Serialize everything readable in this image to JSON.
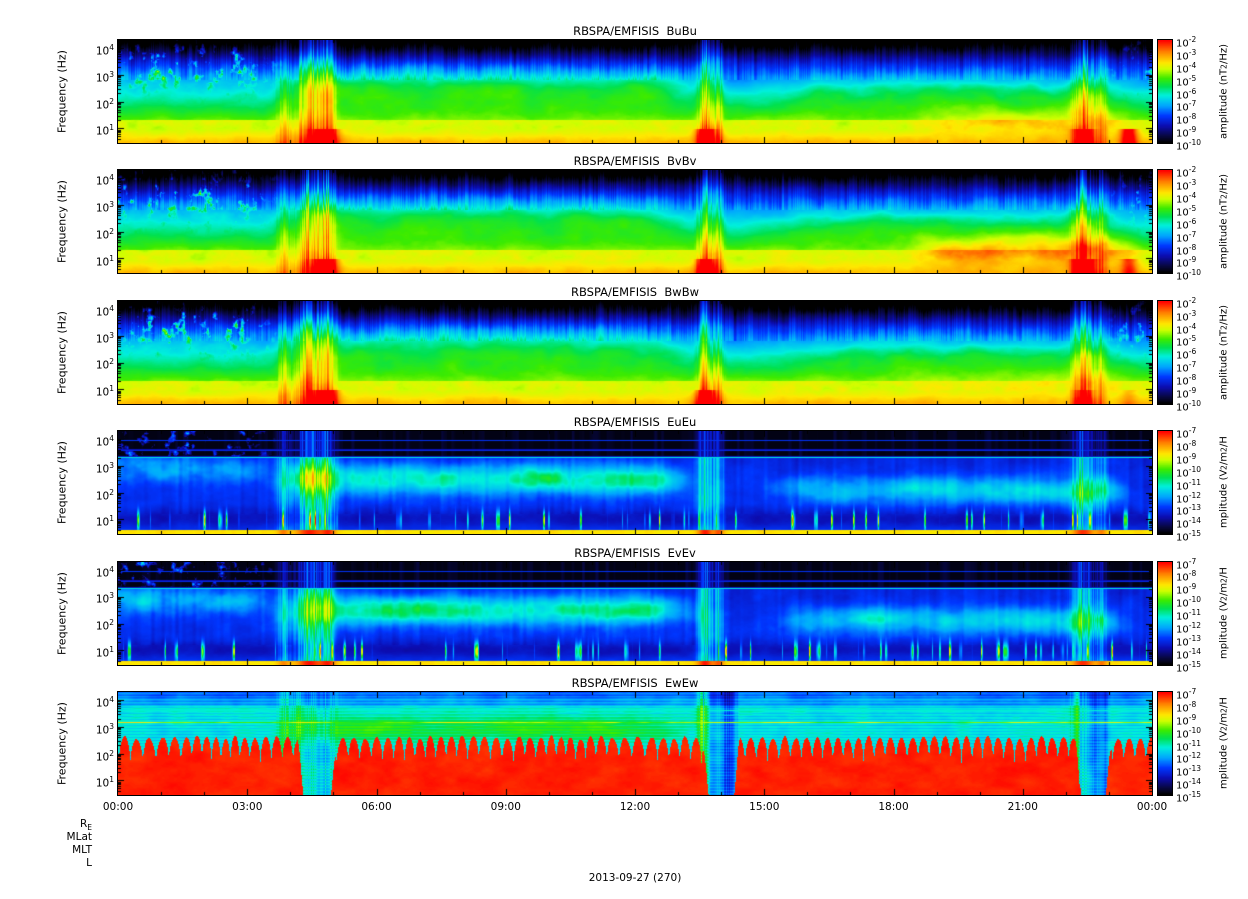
{
  "figure": {
    "background": "#ffffff",
    "date_label": "2013-09-27 (270)",
    "ephemeris_row_labels": [
      "R_E",
      "MLat",
      "MLT",
      "L"
    ],
    "time_axis": {
      "tick_labels": [
        "00:00",
        "03:00",
        "06:00",
        "09:00",
        "12:00",
        "15:00",
        "18:00",
        "21:00",
        "00:00"
      ]
    }
  },
  "chart_data": [
    {
      "type": "heatmap",
      "title": "RBSPA/EMFISIS  BuBu",
      "component": "BuBu",
      "ylabel": "Frequency (Hz)",
      "yscale": "log",
      "y_tick_exponents": [
        4,
        3,
        2,
        1
      ],
      "ylim_hz": [
        3,
        20000
      ],
      "colorbar": {
        "label": "amplitude (nT^2/Hz)",
        "scale": "log",
        "tick_exponents": [
          -2,
          -3,
          -4,
          -5,
          -6,
          -7,
          -8,
          -9,
          -10
        ]
      },
      "features": "magnetic spectral density: intense yellow-orange band below ~30 Hz all day with red bursts near 05:00, 13:40, 22:30 and 23:30; green hiss band 100-1000 Hz enhanced 05:00-13:30 and patchy afterwards; broadband impulsive streaks 04:10-05:00, 13:30-14:00, 22:20; dark background above ~3 kHz with faint blue striations"
    },
    {
      "type": "heatmap",
      "title": "RBSPA/EMFISIS  BvBv",
      "component": "BvBv",
      "ylabel": "Frequency (Hz)",
      "yscale": "log",
      "y_tick_exponents": [
        4,
        3,
        2,
        1
      ],
      "ylim_hz": [
        3,
        20000
      ],
      "colorbar": {
        "label": "amplitude (nT^2/Hz)",
        "scale": "log",
        "tick_exponents": [
          -2,
          -3,
          -4,
          -5,
          -6,
          -7,
          -8,
          -9,
          -10
        ]
      },
      "features": "similar to BuBu with stronger orange patches 10-60 Hz between 19:00 and 23:00 and red low-frequency bursts near 05:00, 13:40 and 22:45"
    },
    {
      "type": "heatmap",
      "title": "RBSPA/EMFISIS  BwBw",
      "component": "BwBw",
      "ylabel": "Frequency (Hz)",
      "yscale": "log",
      "y_tick_exponents": [
        4,
        3,
        2,
        1
      ],
      "ylim_hz": [
        3,
        20000
      ],
      "colorbar": {
        "label": "amplitude (nT^2/Hz)",
        "scale": "log",
        "tick_exponents": [
          -2,
          -3,
          -4,
          -5,
          -6,
          -7,
          -8,
          -9,
          -10
        ]
      },
      "features": "similar to BuBu with smoother uniform yellow low-frequency band and weaker red bursts"
    },
    {
      "type": "heatmap",
      "title": "RBSPA/EMFISIS  EuEu",
      "component": "EuEu",
      "ylabel": "Frequency (Hz)",
      "yscale": "log",
      "y_tick_exponents": [
        4,
        3,
        2,
        1
      ],
      "ylim_hz": [
        3,
        20000
      ],
      "colorbar": {
        "label": "mplitude (V^2/m^2/H",
        "scale": "log",
        "tick_exponents": [
          -7,
          -8,
          -9,
          -10,
          -11,
          -12,
          -13,
          -14,
          -15
        ]
      },
      "features": "electric spectral density: thin yellow line at lowest frequencies; dark blue background with cyan-green band 100-1000 Hz enhanced 05:00-13:30 and patchy 15:00-23:00; black band above ~2 kHz crossed by narrow cyan horizontal lines; broadband streaks at 04:30, 13:40, 22:30; green vertical spikes below ~30 Hz"
    },
    {
      "type": "heatmap",
      "title": "RBSPA/EMFISIS  EvEv",
      "component": "EvEv",
      "ylabel": "Frequency (Hz)",
      "yscale": "log",
      "y_tick_exponents": [
        4,
        3,
        2,
        1
      ],
      "ylim_hz": [
        3,
        20000
      ],
      "colorbar": {
        "label": "mplitude (V^2/m^2/H",
        "scale": "log",
        "tick_exponents": [
          -7,
          -8,
          -9,
          -10,
          -11,
          -12,
          -13,
          -14,
          -15
        ]
      },
      "features": "very similar to EuEu: dark blue background, cyan-green mid-frequency band strongest 05:00-13:30, black high-frequency band with cyan lines, broadband streaks at 04:30, 13:40, 22:30"
    },
    {
      "type": "heatmap",
      "title": "RBSPA/EMFISIS  EwEw",
      "component": "EwEw",
      "ylabel": "Frequency (Hz)",
      "yscale": "log",
      "y_tick_exponents": [
        4,
        3,
        2,
        1
      ],
      "ylim_hz": [
        3,
        20000
      ],
      "colorbar": {
        "label": "mplitude (V^2/m^2/H",
        "scale": "log",
        "tick_exponents": [
          -7,
          -8,
          -9,
          -10,
          -11,
          -12,
          -13,
          -14,
          -15
        ]
      },
      "features": "saturated red below ~100 Hz with comb-like spikes reaching ~300 Hz, interrupted 04:15-05:00, 13:40-14:20 and 22:20-23:00 by blue streaked gaps; cyan background above with green blobs 06:00-12:30, a yellow-green horizontal line near 1.5 kHz and cyan lines near 3-4 kHz"
    }
  ]
}
